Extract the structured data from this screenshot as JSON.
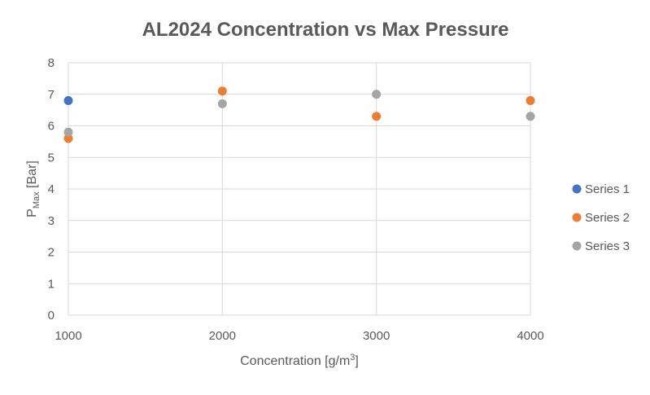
{
  "chart_data": {
    "type": "scatter",
    "title": "AL2024 Concentration vs Max Pressure",
    "xlabel": "Concentration [g/m",
    "xlabel_sup": "3",
    "xlabel_end": "]",
    "ylabel": "P",
    "ylabel_sub": "Max",
    "ylabel_end": " [Bar]",
    "xlim": [
      1000,
      4000
    ],
    "ylim": [
      0,
      8
    ],
    "x_ticks": [
      1000,
      2000,
      3000,
      4000
    ],
    "y_ticks": [
      0,
      1,
      2,
      3,
      4,
      5,
      6,
      7,
      8
    ],
    "grid": true,
    "legend_position": "right",
    "series": [
      {
        "name": "Series 1",
        "color": "#4472c4",
        "points": [
          {
            "x": 1000,
            "y": 6.8
          }
        ]
      },
      {
        "name": "Series 2",
        "color": "#ed7d31",
        "points": [
          {
            "x": 1000,
            "y": 5.6
          },
          {
            "x": 2000,
            "y": 7.1
          },
          {
            "x": 3000,
            "y": 6.3
          },
          {
            "x": 4000,
            "y": 6.8
          }
        ]
      },
      {
        "name": "Series 3",
        "color": "#a5a5a5",
        "points": [
          {
            "x": 1000,
            "y": 5.8
          },
          {
            "x": 2000,
            "y": 6.7
          },
          {
            "x": 3000,
            "y": 7.0
          },
          {
            "x": 4000,
            "y": 6.3
          }
        ]
      }
    ]
  }
}
